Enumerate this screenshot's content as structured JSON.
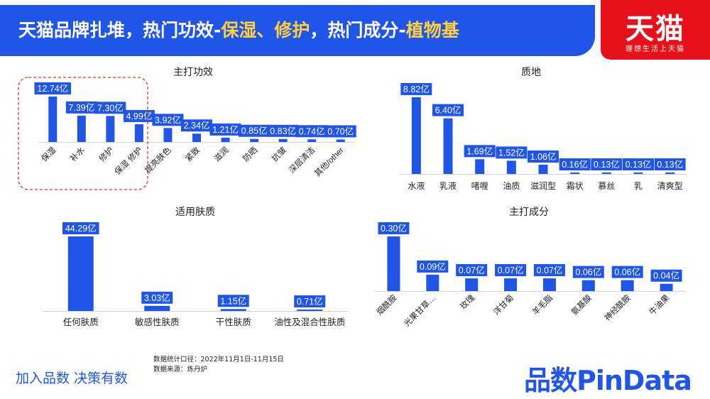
{
  "header": {
    "title_prefix": "天猫品牌扎堆，热门功效-",
    "title_hl1": "保湿、修护",
    "title_mid": "，热门成分-",
    "title_hl2": "植物基"
  },
  "tmall": {
    "name": "天猫",
    "slogan": "理想生活上天猫"
  },
  "footer": {
    "left_text": "加入品数 决策有数",
    "source_line1": "数据统计口径：2022年11月1日-11月15日",
    "source_line2": "数据来源：炼丹炉",
    "brand": "品数PinData"
  },
  "colors": {
    "bar": "#1f55e8",
    "accent": "#ffd23a",
    "tmall_red": "#e8101a",
    "highlight_border": "#e03030"
  },
  "chart_data": [
    {
      "type": "bar",
      "title": "主打功效",
      "categories": [
        "保湿",
        "补水",
        "修护",
        "保湿 修护",
        "提亮肤色",
        "紧致",
        "滋润",
        "防晒",
        "抗皱",
        "深层清洁",
        "其他/other"
      ],
      "values": [
        12.74,
        7.39,
        7.3,
        4.99,
        3.92,
        2.34,
        1.21,
        0.85,
        0.83,
        0.74,
        0.7
      ],
      "data_labels": [
        "12.74亿",
        "7.39亿",
        "7.30亿",
        "4.99亿",
        "3.92亿",
        "2.34亿",
        "1.21亿",
        "0.85亿",
        "0.83亿",
        "0.74亿",
        "0.70亿"
      ],
      "unit": "亿",
      "highlighted": [
        "保湿",
        "补水",
        "修护",
        "保湿 修护"
      ]
    },
    {
      "type": "bar",
      "title": "质地",
      "categories": [
        "水液",
        "乳液",
        "啫喱",
        "油质",
        "滋润型",
        "霜状",
        "慕丝",
        "乳",
        "清爽型"
      ],
      "values": [
        8.82,
        6.4,
        1.69,
        1.52,
        1.06,
        0.16,
        0.13,
        0.13,
        0.13
      ],
      "data_labels": [
        "8.82亿",
        "6.40亿",
        "1.69亿",
        "1.52亿",
        "1.06亿",
        "0.16亿",
        "0.13亿",
        "0.13亿",
        "0.13亿"
      ],
      "unit": "亿"
    },
    {
      "type": "bar",
      "title": "适用肤质",
      "categories": [
        "任何肤质",
        "敏感性肤质",
        "干性肤质",
        "油性及混合性肤质"
      ],
      "values": [
        44.29,
        3.03,
        1.15,
        0.71
      ],
      "data_labels": [
        "44.29亿",
        "3.03亿",
        "1.15亿",
        "0.71亿"
      ],
      "unit": "亿"
    },
    {
      "type": "bar",
      "title": "主打成分",
      "categories": [
        "烟酰胺",
        "光果甘草…",
        "玫瑰",
        "洋甘菊",
        "羊毛脂",
        "氨基酸",
        "神经酰胺",
        "牛油果"
      ],
      "values": [
        0.3,
        0.09,
        0.07,
        0.07,
        0.07,
        0.06,
        0.06,
        0.04
      ],
      "data_labels": [
        "0.30亿",
        "0.09亿",
        "0.07亿",
        "0.07亿",
        "0.07亿",
        "0.06亿",
        "0.06亿",
        "0.04亿"
      ],
      "unit": "亿"
    }
  ]
}
